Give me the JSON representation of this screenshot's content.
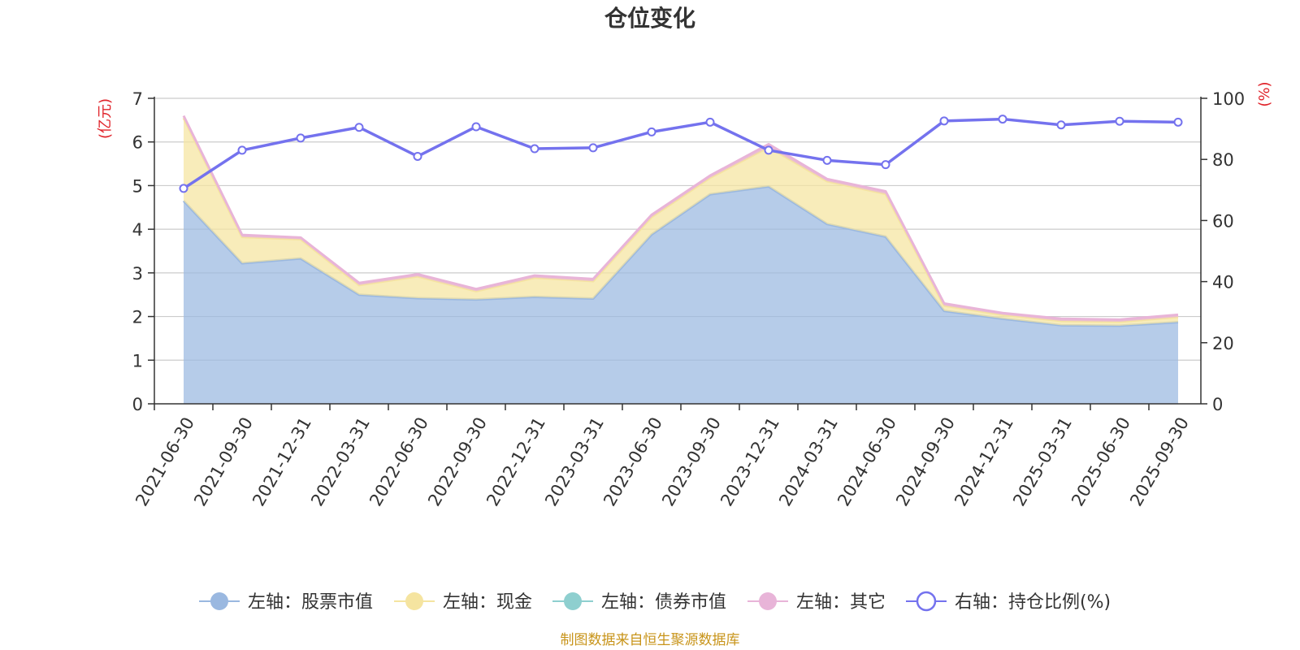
{
  "chart_data": {
    "type": "area",
    "title": "仓位变化",
    "left_axis_unit": "(亿元)",
    "right_axis_unit": "(%)",
    "left_ylim": [
      0,
      7
    ],
    "left_ticks": [
      0,
      1,
      2,
      3,
      4,
      5,
      6,
      7
    ],
    "right_ylim": [
      0,
      100
    ],
    "right_ticks": [
      0,
      20,
      40,
      60,
      80,
      100
    ],
    "categories": [
      "2021-06-30",
      "2021-09-30",
      "2021-12-31",
      "2022-03-31",
      "2022-06-30",
      "2022-09-30",
      "2022-12-31",
      "2023-03-31",
      "2023-06-30",
      "2023-09-30",
      "2023-12-31",
      "2024-03-31",
      "2024-06-30",
      "2024-09-30",
      "2024-12-31",
      "2025-03-31",
      "2025-06-30",
      "2025-09-30"
    ],
    "series": [
      {
        "name": "左轴：股票市值",
        "axis": "left",
        "kind": "stacked-area",
        "color": "#9ab8e0",
        "values": [
          4.65,
          3.22,
          3.33,
          2.5,
          2.42,
          2.39,
          2.45,
          2.41,
          3.88,
          4.8,
          4.98,
          4.12,
          3.83,
          2.13,
          1.95,
          1.8,
          1.79,
          1.87
        ]
      },
      {
        "name": "左轴：现金",
        "axis": "left",
        "kind": "stacked-area",
        "color": "#f5e4a0",
        "values": [
          1.9,
          0.6,
          0.44,
          0.22,
          0.5,
          0.19,
          0.44,
          0.4,
          0.4,
          0.38,
          0.9,
          0.98,
          0.98,
          0.12,
          0.09,
          0.1,
          0.09,
          0.12
        ]
      },
      {
        "name": "左轴：债券市值",
        "axis": "left",
        "kind": "stacked-area",
        "color": "#8ecfcf",
        "values": [
          0,
          0,
          0,
          0,
          0,
          0,
          0,
          0,
          0,
          0,
          0,
          0,
          0,
          0,
          0,
          0,
          0,
          0
        ]
      },
      {
        "name": "左轴：其它",
        "axis": "left",
        "kind": "stacked-area",
        "color": "#e8b4d8",
        "values": [
          0.05,
          0.05,
          0.04,
          0.05,
          0.05,
          0.05,
          0.05,
          0.05,
          0.05,
          0.05,
          0.07,
          0.05,
          0.06,
          0.05,
          0.04,
          0.05,
          0.05,
          0.05
        ]
      },
      {
        "name": "右轴：持仓比例(%)",
        "axis": "right",
        "kind": "line",
        "color": "#7472ee",
        "values": [
          70.5,
          83.0,
          87.0,
          90.5,
          81.0,
          90.7,
          83.5,
          83.8,
          89.0,
          92.2,
          83.0,
          79.7,
          78.3,
          92.6,
          93.2,
          91.3,
          92.5,
          92.2
        ]
      }
    ],
    "legend_position": "bottom",
    "source_note": "制图数据来自恒生聚源数据库"
  }
}
